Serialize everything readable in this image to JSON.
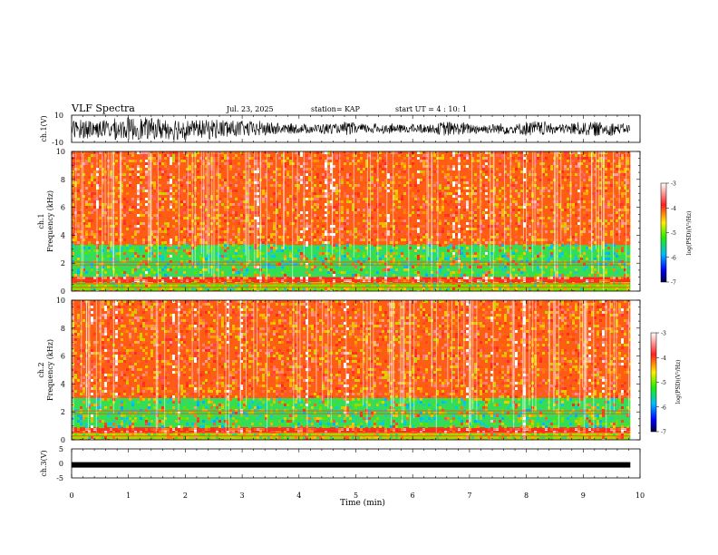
{
  "header": {
    "title": "VLF Spectra",
    "date": "Jul. 23, 2025",
    "station": "station= KAP",
    "start": "start UT =  4 : 10: 1"
  },
  "chart_data": [
    {
      "type": "line",
      "name": "ch1-waveform",
      "ylabel": "ch.1(V)",
      "ylim": [
        -10,
        10
      ],
      "y_ticks": [
        "10",
        "-10"
      ],
      "xlim": [
        0,
        10
      ],
      "description_values": "dense broadband noise waveform spanning approximately -8 to +8 V over 0-9.8 min"
    },
    {
      "type": "heatmap",
      "name": "ch1-spectrogram",
      "ylabel_line1": "ch.1",
      "ylabel_line2": "Frequency (kHz)",
      "ylim": [
        0,
        10
      ],
      "y_ticks": [
        "0",
        "2",
        "4",
        "6",
        "8",
        "10"
      ],
      "xlim": [
        0,
        9.83
      ],
      "colorbar": {
        "label": "log(PSD)(V²/Hz)",
        "range": [
          -7,
          -3
        ],
        "ticks": [
          "-3",
          "-4",
          "-5",
          "-6",
          "-7"
        ]
      },
      "bands": [
        {
          "from_khz": 0,
          "to_khz": 0.6,
          "level": -4.5
        },
        {
          "from_khz": 0.6,
          "to_khz": 1.0,
          "level": -3.6
        },
        {
          "from_khz": 1.0,
          "to_khz": 3.3,
          "level": -4.8
        },
        {
          "from_khz": 3.3,
          "to_khz": 10,
          "level": -3.8
        }
      ]
    },
    {
      "type": "heatmap",
      "name": "ch2-spectrogram",
      "ylabel_line1": "ch.2",
      "ylabel_line2": "Frequency (kHz)",
      "ylim": [
        0,
        10
      ],
      "y_ticks": [
        "0",
        "2",
        "4",
        "6",
        "8",
        "10"
      ],
      "xlim": [
        0,
        9.83
      ],
      "colorbar": {
        "label": "log(PSD)(V²/Hz)",
        "range": [
          -7,
          -3
        ],
        "ticks": [
          "-3",
          "-4",
          "-5",
          "-6",
          "-7"
        ]
      },
      "bands": [
        {
          "from_khz": 0,
          "to_khz": 0.5,
          "level": -4.4
        },
        {
          "from_khz": 0.5,
          "to_khz": 0.9,
          "level": -3.6
        },
        {
          "from_khz": 0.9,
          "to_khz": 3.0,
          "level": -4.8
        },
        {
          "from_khz": 3.0,
          "to_khz": 10,
          "level": -3.8
        }
      ]
    },
    {
      "type": "line",
      "name": "ch3-waveform",
      "ylabel": "ch.3(V)",
      "ylim": [
        -5,
        5
      ],
      "y_ticks": [
        "5",
        "0",
        "-5"
      ],
      "xlim": [
        0,
        10
      ],
      "description_values": "nearly constant trace at about -0.5 V over 0-9.8 min",
      "level": -0.5
    }
  ],
  "x_axis": {
    "label": "Time (min)",
    "ticks": [
      "0",
      "1",
      "2",
      "3",
      "4",
      "5",
      "6",
      "7",
      "8",
      "9",
      "10"
    ],
    "data_end": 9.83
  }
}
